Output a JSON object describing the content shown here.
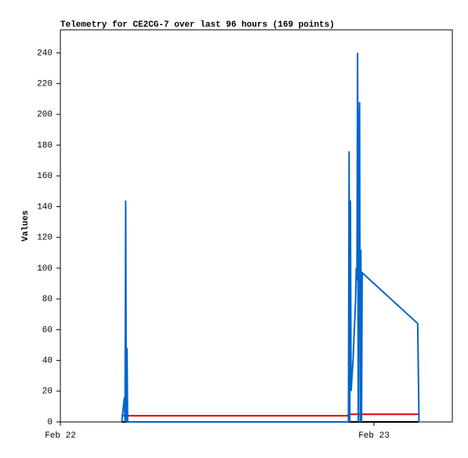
{
  "chart_data": {
    "type": "line",
    "title": "Telemetry for CE2CG-7 over last 96 hours (169 points)",
    "y_label": "Values",
    "xlim": [
      0,
      30
    ],
    "xticks": [
      {
        "value": 0,
        "label": "Feb 22"
      },
      {
        "value": 24,
        "label": "Feb 23"
      }
    ],
    "ylim": [
      0,
      255
    ],
    "yticks": [
      0,
      20,
      40,
      60,
      80,
      100,
      120,
      140,
      160,
      180,
      200,
      220,
      240
    ],
    "series": [
      {
        "color": "#000000",
        "x": [
          4.7,
          27.4
        ],
        "values": [
          0,
          0
        ]
      },
      {
        "color": "#e00000",
        "x": [
          4.7,
          4.8,
          22.0,
          22.05,
          27.4
        ],
        "values": [
          5,
          4,
          4,
          5,
          5
        ]
      },
      {
        "color": "#0066cc",
        "x": [
          4.7,
          4.9,
          4.95,
          5.0,
          5.05,
          5.1,
          5.15,
          22.05,
          22.1,
          22.15,
          22.2,
          22.25,
          22.4,
          22.5,
          22.6,
          22.65,
          22.7,
          22.75,
          22.8,
          22.85,
          22.9,
          22.95,
          23.0,
          23.05,
          23.1,
          27.35,
          27.4,
          27.45
        ],
        "values": [
          0,
          16,
          0,
          144,
          0,
          48,
          0,
          0,
          176,
          0,
          144,
          20,
          40,
          60,
          80,
          100,
          92,
          240,
          0,
          192,
          208,
          0,
          112,
          0,
          97,
          64,
          32,
          0
        ]
      }
    ]
  }
}
